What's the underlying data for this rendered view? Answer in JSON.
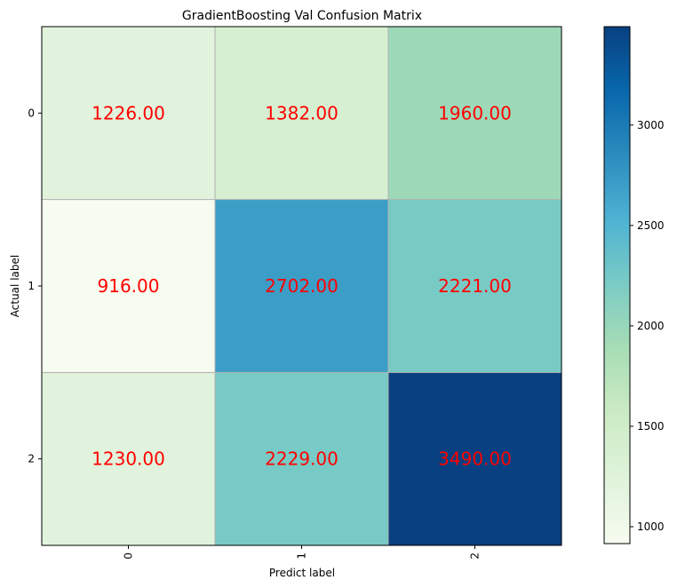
{
  "chart_data": {
    "type": "heatmap",
    "title": "GradientBoosting Val Confusion Matrix",
    "xlabel": "Predict label",
    "ylabel": "Actual label",
    "x_categories": [
      "0",
      "1",
      "2"
    ],
    "y_categories": [
      "0",
      "1",
      "2"
    ],
    "values": [
      [
        1226,
        1382,
        1960
      ],
      [
        916,
        2702,
        2221
      ],
      [
        1230,
        2229,
        3490
      ]
    ],
    "value_labels": [
      [
        "1226.00",
        "1382.00",
        "1960.00"
      ],
      [
        "916.00",
        "2702.00",
        "2221.00"
      ],
      [
        "1230.00",
        "2229.00",
        "3490.00"
      ]
    ],
    "colormap": "GnBu",
    "value_label_color": "#ff0000",
    "colorbar": {
      "vmin": 916,
      "vmax": 3490,
      "ticks": [
        1000,
        1500,
        2000,
        2500,
        3000
      ],
      "tick_labels": [
        "1000",
        "1500",
        "2000",
        "2500",
        "3000"
      ]
    },
    "grid": true
  }
}
